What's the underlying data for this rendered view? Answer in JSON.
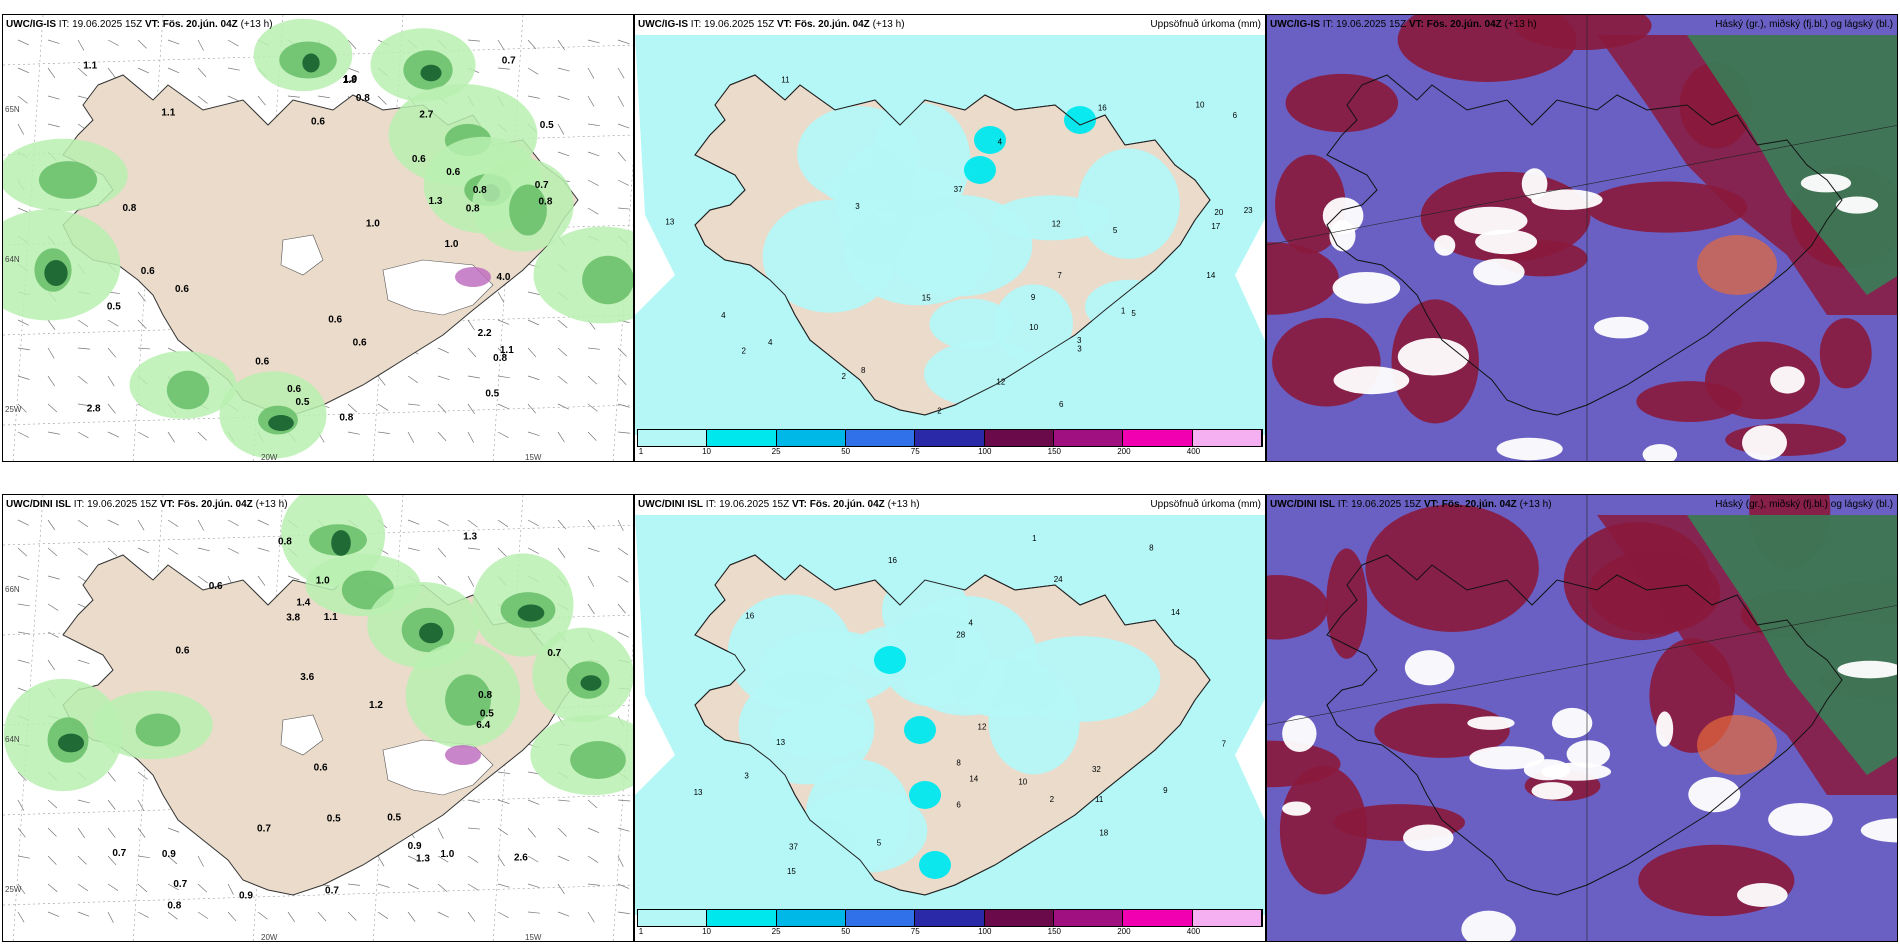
{
  "panels": [
    {
      "model": "UWC/IG-IS",
      "it_label": "IT:",
      "it": "19.06.2025 15Z",
      "vt_label": "VT:",
      "vt": "Fös. 20.jún. 04Z",
      "lead": "(+13 h)",
      "title_right": "",
      "lon_labels": [
        "20W",
        "15W"
      ],
      "lat_labels": [
        "65N",
        "64N",
        "25W"
      ],
      "precip_values": [
        "0.5",
        "0.7",
        "0.6",
        "0.8",
        "1.0",
        "0.6",
        "0.7",
        "0.6",
        "0.8",
        "1.0",
        "0.6",
        "0.5",
        "0.6",
        "0.8",
        "1.1",
        "0.8",
        "0.6",
        "1.3",
        "1.1",
        "0.6",
        "1.8",
        "0.6",
        "0.5",
        "0.8",
        "1.0",
        "1.1",
        "2.2",
        "2.7",
        "0.5",
        "0.8",
        "4.0",
        "2.8",
        "0.6",
        "0.8"
      ]
    },
    {
      "model": "UWC/IG-IS",
      "it_label": "IT:",
      "it": "19.06.2025 15Z",
      "vt_label": "VT:",
      "vt": "Fös. 20.jún. 04Z",
      "lead": "(+13 h)",
      "title_right": "Uppsöfnuð úrkoma (mm)",
      "colorbar": [
        "1",
        "10",
        "25",
        "50",
        "75",
        "100",
        "150",
        "200",
        "400"
      ],
      "totals": [
        "2",
        "2",
        "6",
        "16",
        "3",
        "5",
        "4",
        "17",
        "13",
        "20",
        "37",
        "23",
        "11",
        "3",
        "4",
        "12",
        "10",
        "9",
        "6",
        "15",
        "14",
        "12",
        "10",
        "8",
        "7",
        "5",
        "4",
        "3",
        "2",
        "1"
      ]
    },
    {
      "model": "UWC/IG-IS",
      "it_label": "IT:",
      "it": "19.06.2025 15Z",
      "vt_label": "VT:",
      "vt": "Fös. 20.jún. 04Z",
      "lead": "(+13 h)",
      "title_right": "Háský (gr.), miðský (fj.bl.) og lágský (bl.)"
    },
    {
      "model": "UWC/DINI ISL",
      "it_label": "IT:",
      "it": "19.06.2025 15Z",
      "vt_label": "VT:",
      "vt": "Fös. 20.jún. 04Z",
      "lead": "(+13 h)",
      "title_right": "",
      "lon_labels": [
        "20W",
        "15W"
      ],
      "lat_labels": [
        "66N",
        "64N",
        "25W"
      ],
      "precip_values": [
        "0.6",
        "0.8",
        "0.9",
        "0.7",
        "1.1",
        "0.6",
        "0.5",
        "1.2",
        "0.9",
        "1.0",
        "1.3",
        "0.7",
        "3.6",
        "3.8",
        "0.7",
        "1.0",
        "0.8",
        "0.5",
        "1.3",
        "0.9",
        "0.7",
        "0.5",
        "0.6",
        "1.4",
        "2.6",
        "0.7",
        "0.8",
        "6.4"
      ]
    },
    {
      "model": "UWC/DINI ISL",
      "it_label": "IT:",
      "it": "19.06.2025 15Z",
      "vt_label": "VT:",
      "vt": "Fös. 20.jún. 04Z",
      "lead": "(+13 h)",
      "title_right": "Uppsöfnuð úrkoma (mm)",
      "colorbar": [
        "1",
        "10",
        "25",
        "50",
        "75",
        "100",
        "150",
        "200",
        "400"
      ],
      "totals": [
        "16",
        "8",
        "13",
        "24",
        "14",
        "32",
        "28",
        "12",
        "13",
        "37",
        "15",
        "18",
        "16",
        "14",
        "11",
        "10",
        "9",
        "8",
        "7",
        "6",
        "5",
        "4",
        "3",
        "2",
        "1"
      ]
    },
    {
      "model": "UWC/DINI ISL",
      "it_label": "IT:",
      "it": "19.06.2025 15Z",
      "vt_label": "VT:",
      "vt": "Fös. 20.jún. 04Z",
      "lead": "(+13 h)",
      "title_right": "Háský (gr.), miðský (fj.bl.) og lágský (bl.)"
    }
  ],
  "colors": {
    "land": "#eadbcb",
    "precip_light": "#b9f0b0",
    "precip_mid": "#6cc06c",
    "precip_dark": "#1f6a35",
    "accum_base": "#b5f7f7",
    "cloud_low": "#6a60c4",
    "cloud_mid": "#8a1a3c",
    "cloud_high": "#2e8a5a",
    "cbar": [
      "#b5f7f7",
      "#00e8ee",
      "#00b8e8",
      "#3070e8",
      "#2a2aa8",
      "#6a0a4a",
      "#a01080",
      "#f000b0",
      "#f4b0f0"
    ]
  }
}
